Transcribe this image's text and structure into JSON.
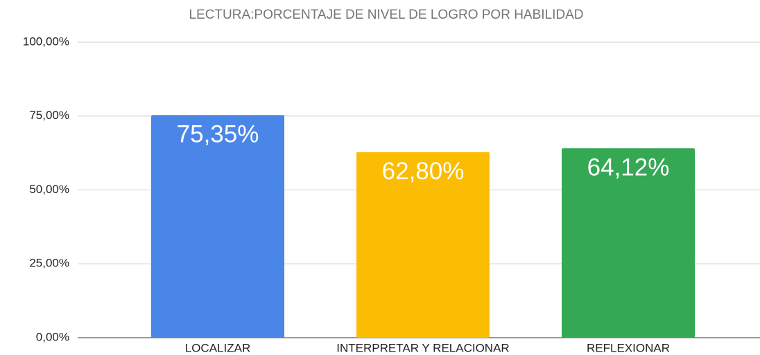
{
  "chart_data": {
    "type": "bar",
    "title": "LECTURA:PORCENTAJE DE NIVEL DE LOGRO POR HABILIDAD",
    "categories": [
      "LOCALIZAR",
      "INTERPRETAR Y RELACIONAR",
      "REFLEXIONAR"
    ],
    "values": [
      75.35,
      62.8,
      64.12
    ],
    "value_labels": [
      "75,35%",
      "62,80%",
      "64,12%"
    ],
    "colors": [
      "#4a86e8",
      "#fbbc04",
      "#34a853"
    ],
    "ylim": [
      0,
      100
    ],
    "yticks": [
      {
        "value": 0,
        "label": "0,00%"
      },
      {
        "value": 25,
        "label": "25,00%"
      },
      {
        "value": 50,
        "label": "50,00%"
      },
      {
        "value": 75,
        "label": "75,00%"
      },
      {
        "value": 100,
        "label": "100,00%"
      }
    ],
    "grid": true
  }
}
